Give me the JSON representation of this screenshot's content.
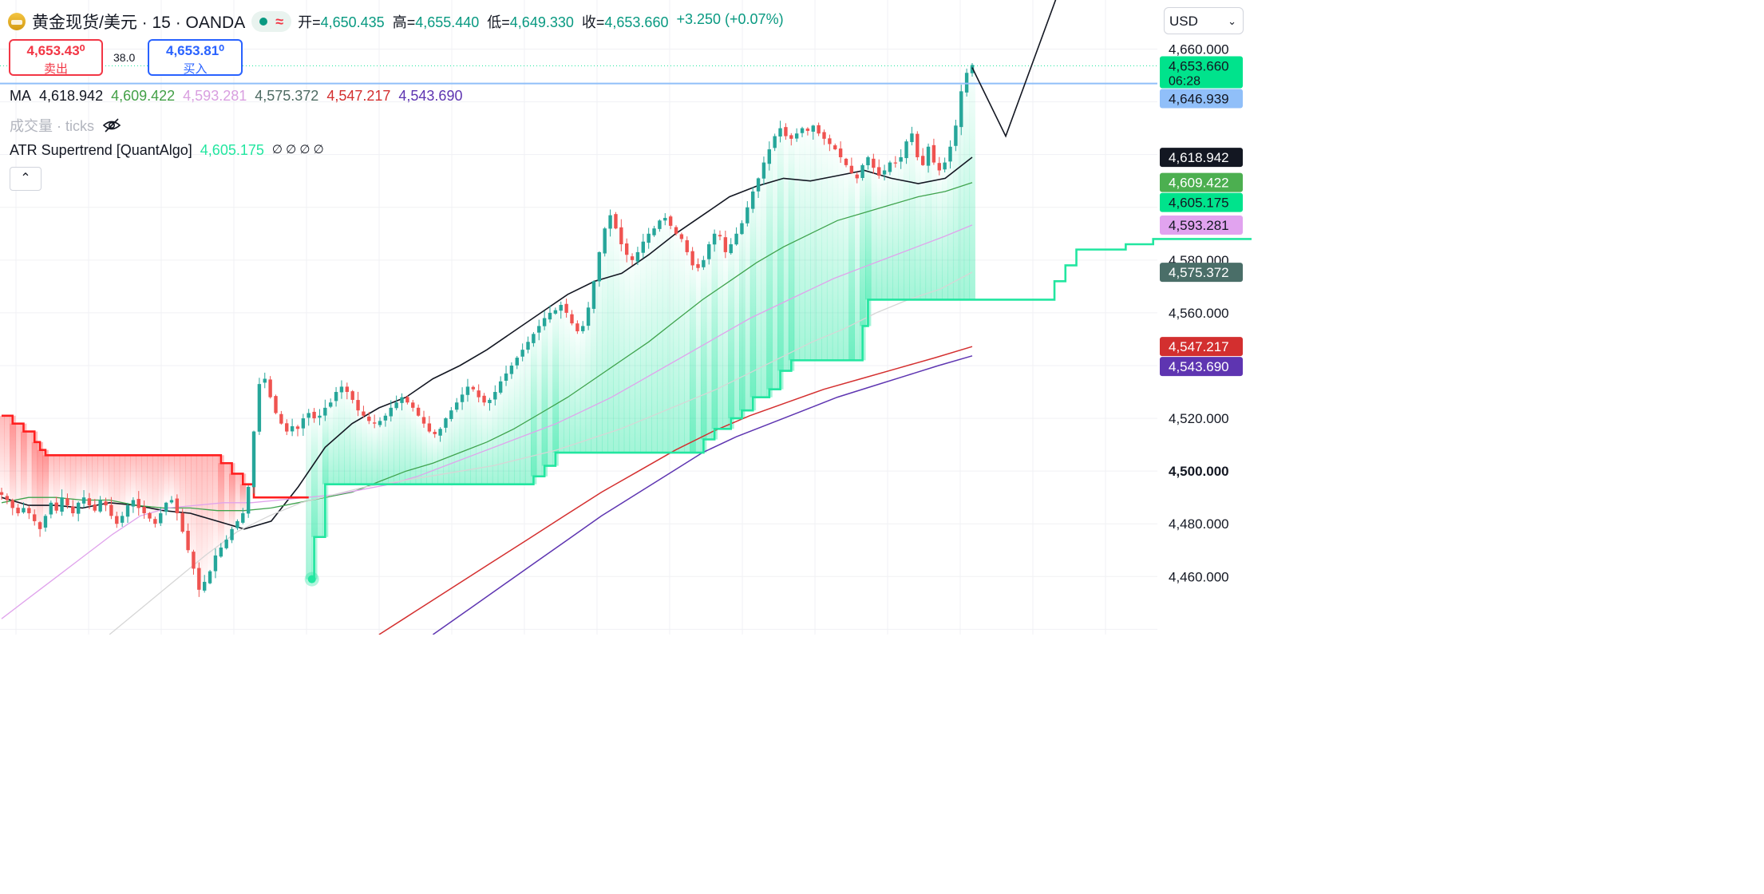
{
  "header": {
    "symbol": "黄金现货/美元 · 15 · OANDA",
    "wave_icon": "≈",
    "ohlc": [
      {
        "k": "开",
        "v": "4,650.435"
      },
      {
        "k": "高",
        "v": "4,655.440"
      },
      {
        "k": "低",
        "v": "4,649.330"
      },
      {
        "k": "收",
        "v": "4,653.660"
      }
    ],
    "change": "+3.250 (+0.07%)"
  },
  "trade": {
    "sell_price": "4,653.43⁰",
    "sell_label": "卖出",
    "spread": "38.0",
    "buy_price": "4,653.81⁰",
    "buy_label": "买入"
  },
  "indicators": {
    "ma_label": "MA",
    "ma_values": [
      {
        "v": "4,618.942",
        "color": "#131722"
      },
      {
        "v": "4,609.422",
        "color": "#43a047"
      },
      {
        "v": "4,593.281",
        "color": "#d99fe0"
      },
      {
        "v": "4,575.372",
        "color": "#4e6b63"
      },
      {
        "v": "4,547.217",
        "color": "#d32f2f"
      },
      {
        "v": "4,543.690",
        "color": "#5e35b1"
      }
    ],
    "volume_label": "成交量 · ticks",
    "atr_label": "ATR Supertrend [QuantAlgo]",
    "atr_value": "4,605.175",
    "atr_extras": "∅ ∅ ∅ ∅",
    "collapse_icon": "⌃"
  },
  "currency": "USD",
  "price_axis": {
    "ticks": [
      "4,660.000",
      "4,580.000",
      "4,560.000",
      "4,520.000",
      "4,500.000",
      "4,480.000",
      "4,460.000"
    ],
    "ticks_val": [
      4660,
      4580,
      4560,
      4520,
      4500,
      4480,
      4460
    ],
    "bold_tick": "4,500.000",
    "tags": [
      {
        "text": "4,653.660",
        "sub": "06:28",
        "val": 4653.66,
        "bg": "#00e38c",
        "fg": "#131722"
      },
      {
        "text": "4,646.939",
        "val": 4646.939,
        "bg": "#90bff9",
        "fg": "#131722"
      },
      {
        "text": "4,618.942",
        "val": 4618.942,
        "bg": "#131722",
        "fg": "#ffffff"
      },
      {
        "text": "4,609.422",
        "val": 4609.422,
        "bg": "#4caf50",
        "fg": "#ffffff"
      },
      {
        "text": "4,605.175",
        "val": 4605.175,
        "bg": "#00e38c",
        "fg": "#131722"
      },
      {
        "text": "4,593.281",
        "val": 4593.281,
        "bg": "#e1a3ef",
        "fg": "#131722"
      },
      {
        "text": "4,575.372",
        "val": 4575.372,
        "bg": "#4a6e68",
        "fg": "#ffffff"
      },
      {
        "text": "4,547.217",
        "val": 4547.217,
        "bg": "#d32f2f",
        "fg": "#ffffff"
      },
      {
        "text": "4,543.690",
        "val": 4543.69,
        "bg": "#5e35b1",
        "fg": "#ffffff"
      }
    ]
  },
  "chart_data": {
    "type": "candlestick",
    "y_range": [
      4438,
      4672
    ],
    "colors": {
      "up": "#26a69a",
      "down": "#ef5350",
      "trend_up": "#22e6a0",
      "trend_down": "#ff1f1f"
    },
    "close_path": [
      4491,
      4489,
      4486,
      4484,
      4486,
      4484,
      4481,
      4478,
      4483,
      4488,
      4485,
      4490,
      4487,
      4484,
      4488,
      4490,
      4487,
      4485,
      4489,
      4487,
      4483,
      4480,
      4483,
      4487,
      4489,
      4486,
      4484,
      4482,
      4480,
      4484,
      4488,
      4489,
      4484,
      4477,
      4470,
      4463,
      4455,
      4458,
      4462,
      4468,
      4471,
      4474,
      4478,
      4481,
      4484,
      4494,
      4515,
      4533,
      4535,
      4528,
      4522,
      4518,
      4515,
      4517,
      4516,
      4520,
      4522,
      4520,
      4521,
      4524,
      4526,
      4530,
      4532,
      4530,
      4527,
      4523,
      4521,
      4519,
      4518,
      4519,
      4521,
      4524,
      4526,
      4528,
      4526,
      4524,
      4521,
      4518,
      4515,
      4514,
      4516,
      4520,
      4523,
      4526,
      4529,
      4532,
      4531,
      4528,
      4526,
      4527,
      4530,
      4534,
      4537,
      4540,
      4543,
      4546,
      4549,
      4552,
      4555,
      4558,
      4560,
      4561,
      4563,
      4560,
      4556,
      4553,
      4555,
      4562,
      4572,
      4583,
      4592,
      4597,
      4592,
      4586,
      4582,
      4580,
      4583,
      4587,
      4590,
      4592,
      4595,
      4596,
      4593,
      4590,
      4588,
      4583,
      4578,
      4577,
      4580,
      4586,
      4590,
      4589,
      4583,
      4586,
      4590,
      4594,
      4600,
      4606,
      4611,
      4617,
      4622,
      4627,
      4630,
      4627,
      4626,
      4628,
      4630,
      4629,
      4631,
      4628,
      4626,
      4624,
      4622,
      4619,
      4616,
      4613,
      4611,
      4616,
      4619,
      4615,
      4612,
      4614,
      4617,
      4617,
      4619,
      4625,
      4628,
      4619,
      4616,
      4623,
      4617,
      4614,
      4617,
      4623,
      4631,
      4644,
      4651,
      4654
    ],
    "ma_series": [
      {
        "name": "4,618.942",
        "color": "#131722",
        "width": 1.6,
        "start": 0,
        "pts": [
          4490,
          4487,
          4487,
          4486,
          4488,
          4487,
          4485,
          4484,
          4481,
          4478,
          4481,
          4494,
          4509,
          4518,
          4524,
          4528,
          4535,
          4540,
          4546,
          4553,
          4560,
          4567,
          4572,
          4575,
          4582,
          4590,
          4597,
          4604,
          4608,
          4611,
          4610,
          4612,
          4614,
          4611,
          4609,
          4611,
          4619
        ]
      },
      {
        "name": "4,609.422",
        "color": "#3fa34d",
        "width": 1.3,
        "start": 0,
        "pts": [
          4488,
          4490,
          4490,
          4489,
          4489,
          4487,
          4486,
          4486,
          4485,
          4485,
          4486,
          4488,
          4490,
          4492,
          4496,
          4500,
          4503,
          4507,
          4511,
          4516,
          4522,
          4528,
          4535,
          4542,
          4549,
          4557,
          4565,
          4572,
          4579,
          4585,
          4590,
          4595,
          4598,
          4601,
          4604,
          4606,
          4609.4
        ]
      },
      {
        "name": "4,593.281",
        "color": "#e0a3ec",
        "width": 1.3,
        "start": 0,
        "pts": [
          4444,
          4452,
          4460,
          4468,
          4476,
          4483,
          4486,
          4487,
          4488,
          4488,
          4489,
          4490,
          4491,
          4493,
          4495,
          4498,
          4502,
          4506,
          4510,
          4514,
          4518,
          4523,
          4528,
          4534,
          4540,
          4546,
          4552,
          4558,
          4563,
          4568,
          4573,
          4577,
          4581,
          4585,
          4589,
          4593.3
        ]
      },
      {
        "name": "4,575.372",
        "color": "#d6d6d6",
        "width": 1.3,
        "start": 4,
        "pts": [
          4438,
          4448,
          4458,
          4468,
          4477,
          4483,
          4488,
          4491,
          4494,
          4496,
          4498,
          4500,
          4502,
          4505,
          4508,
          4512,
          4516,
          4521,
          4526,
          4531,
          4537,
          4543,
          4549,
          4554,
          4560,
          4565,
          4569,
          4575.4
        ]
      },
      {
        "name": "4,547.217",
        "color": "#d42f2f",
        "width": 1.5,
        "start": 14,
        "pts": [
          4438,
          4447,
          4456,
          4465,
          4474,
          4483,
          4492,
          4500,
          4508,
          4515,
          4521,
          4526,
          4531,
          4535,
          4539,
          4543,
          4547.2
        ]
      },
      {
        "name": "4,543.690",
        "color": "#5e35b1",
        "width": 1.5,
        "start": 16,
        "pts": [
          4438,
          4447,
          4456,
          4465,
          4474,
          4483,
          4491,
          4499,
          4507,
          4513,
          4518,
          4523,
          4528,
          4532,
          4536,
          4540,
          4543.7
        ]
      }
    ],
    "supertrend": {
      "down_steps": [
        [
          0,
          4521
        ],
        [
          2,
          4518
        ],
        [
          4,
          4515
        ],
        [
          6,
          4511
        ],
        [
          7,
          4508
        ],
        [
          8,
          4506
        ],
        [
          40,
          4503
        ],
        [
          42,
          4499
        ],
        [
          44,
          4495
        ],
        [
          46,
          4490
        ],
        [
          56,
          4490
        ]
      ],
      "up_steps": [
        [
          56,
          4459
        ],
        [
          57,
          4475
        ],
        [
          59,
          4495
        ],
        [
          97,
          4498
        ],
        [
          99,
          4502
        ],
        [
          101,
          4507
        ],
        [
          126,
          4507
        ],
        [
          128,
          4512
        ],
        [
          130,
          4516
        ],
        [
          133,
          4520
        ],
        [
          135,
          4523
        ],
        [
          137,
          4528
        ],
        [
          140,
          4531
        ],
        [
          142,
          4538
        ],
        [
          144,
          4542
        ],
        [
          155,
          4542
        ],
        [
          157,
          4555
        ],
        [
          158,
          4565
        ],
        [
          190,
          4565
        ],
        [
          192,
          4572
        ],
        [
          194,
          4578
        ],
        [
          196,
          4584
        ],
        [
          203,
          4584
        ],
        [
          205,
          4586
        ],
        [
          210,
          4588
        ],
        [
          229,
          4588
        ],
        [
          230,
          4596
        ],
        [
          233,
          4602
        ],
        [
          243,
          4602
        ],
        [
          244,
          4605.2
        ]
      ]
    },
    "projection_arrow": [
      [
        0,
        4653
      ],
      [
        14,
        4627
      ],
      [
        37,
        4684
      ]
    ]
  }
}
